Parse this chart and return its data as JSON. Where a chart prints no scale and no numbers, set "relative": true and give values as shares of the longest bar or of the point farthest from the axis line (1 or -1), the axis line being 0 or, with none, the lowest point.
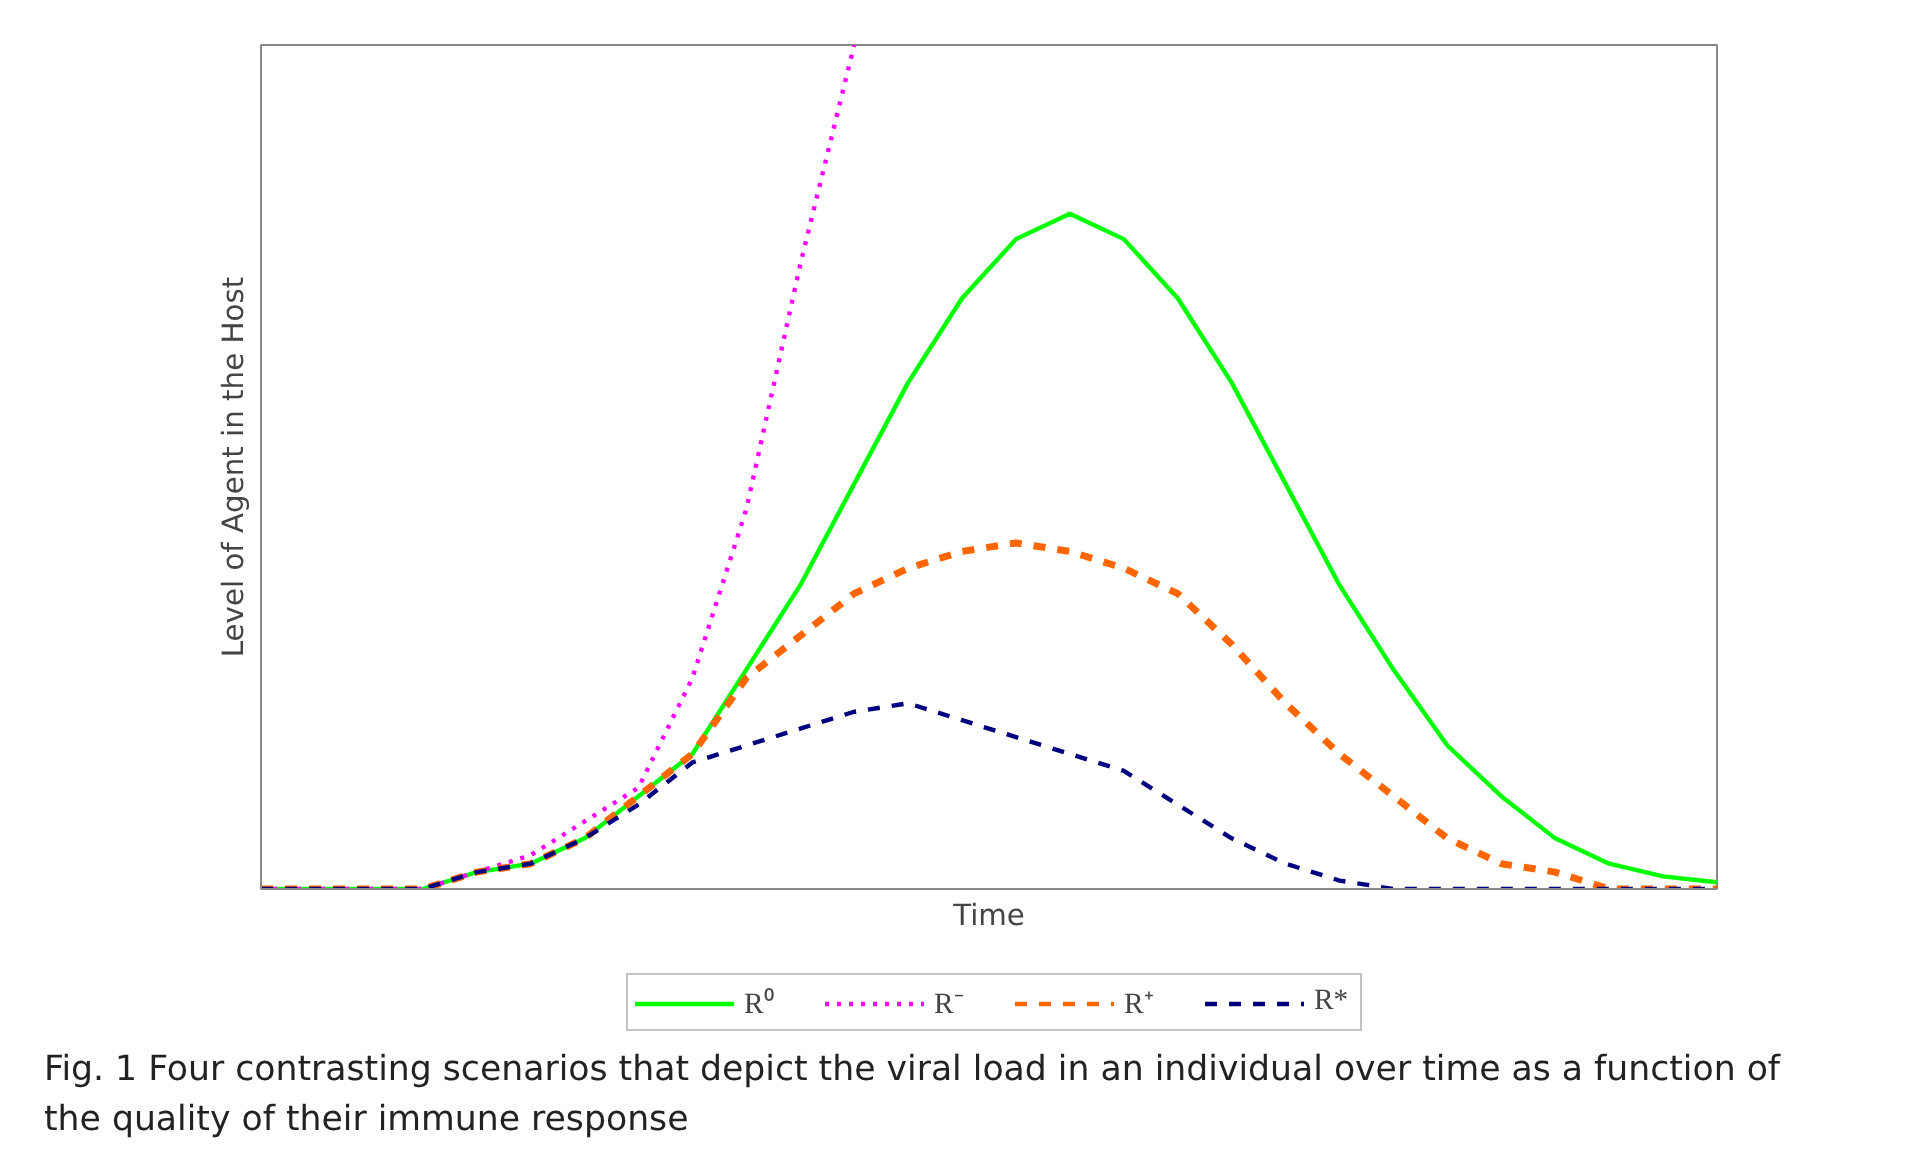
{
  "chart_data": {
    "type": "line",
    "relative": true,
    "xlabel": "Time",
    "ylabel": "Level of Agent in the Host",
    "categories": [
      null,
      null,
      null,
      null,
      null,
      null,
      null,
      null,
      null,
      null,
      null,
      null,
      null,
      null,
      null,
      null,
      null,
      null,
      null,
      null,
      null,
      null,
      null,
      null,
      null,
      null,
      null,
      null
    ],
    "series": [
      {
        "name": "R⁰",
        "color": "#00ff00",
        "line_style": "solid",
        "values": [
          0,
          0,
          0,
          0,
          0.02,
          0.03,
          0.06,
          0.11,
          0.16,
          0.26,
          0.36,
          0.48,
          0.6,
          0.7,
          0.77,
          0.8,
          0.77,
          0.7,
          0.6,
          0.48,
          0.36,
          0.26,
          0.17,
          0.11,
          0.06,
          0.03,
          0.015,
          0.008
        ]
      },
      {
        "name": "R⁻",
        "color": "#ff00ff",
        "line_style": "dotted",
        "values": [
          0,
          0,
          0,
          0,
          0.02,
          0.04,
          0.08,
          0.12,
          0.25,
          0.45,
          0.74,
          1,
          null,
          null,
          null,
          null,
          null,
          null,
          null,
          null,
          null,
          null,
          null,
          null,
          null,
          null,
          null,
          null
        ]
      },
      {
        "name": "R⁺",
        "color": "#ff6600",
        "line_style": "dashed",
        "values": [
          0,
          0,
          0,
          0,
          0.02,
          0.03,
          0.06,
          0.11,
          0.16,
          0.25,
          0.3,
          0.35,
          0.38,
          0.4,
          0.41,
          0.4,
          0.38,
          0.35,
          0.29,
          0.22,
          0.16,
          0.11,
          0.06,
          0.03,
          0.02,
          0,
          0,
          0
        ]
      },
      {
        "name": "R*",
        "color": "#000080",
        "line_style": "dashed",
        "values": [
          0,
          0,
          0,
          0,
          0.02,
          0.03,
          0.06,
          0.1,
          0.15,
          0.17,
          0.19,
          0.21,
          0.22,
          0.2,
          0.18,
          0.16,
          0.14,
          0.1,
          0.06,
          0.03,
          0.01,
          0,
          0,
          0,
          0,
          0,
          0,
          0
        ]
      }
    ],
    "legend": "bottom",
    "grid": false,
    "annotations": [
      "Fig. 1 Four contrasting scenarios that depict the viral load in an individual over time as a function of the quality of their immune response"
    ]
  }
}
